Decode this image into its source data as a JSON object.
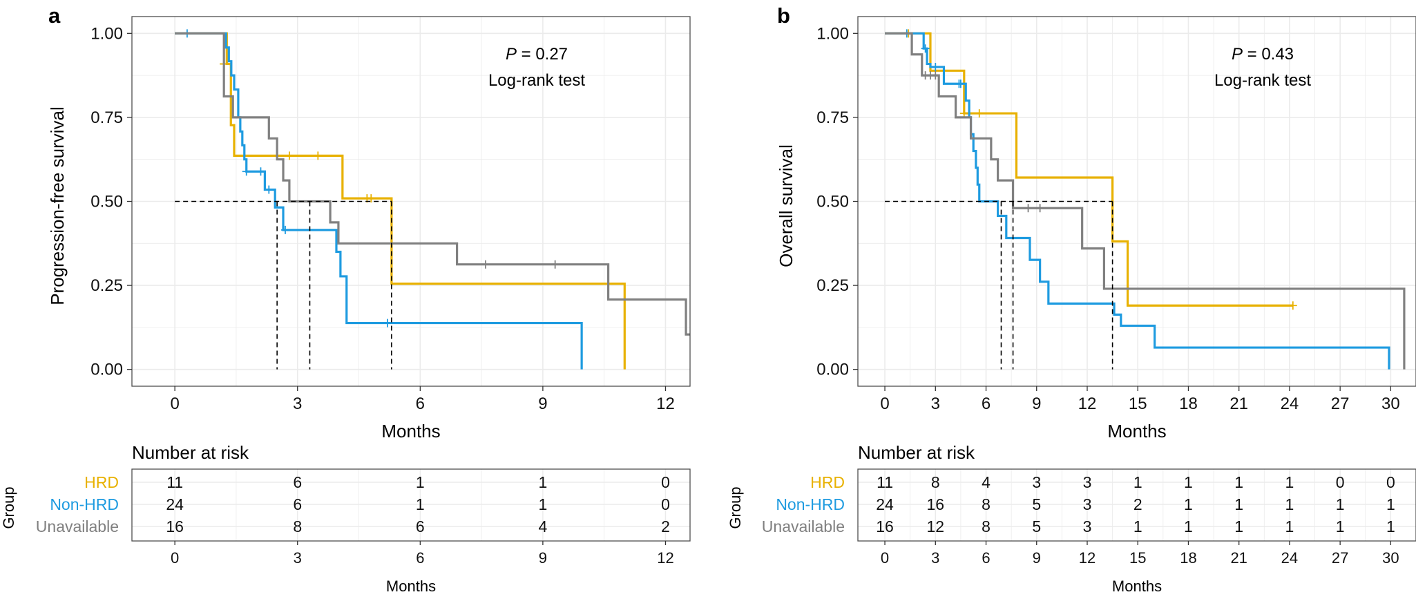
{
  "colors": {
    "hrd": "#E8B100",
    "non_hrd": "#1E9BE0",
    "unavailable": "#808080",
    "median_line": "#000000",
    "grid": "#EBEBEB",
    "panel_border": "#4D4D4D"
  },
  "risk_label": "Number at risk",
  "group_axis_label": "Group",
  "chart_data": [
    {
      "type": "line",
      "subtype": "kaplan-meier",
      "panel_letter": "a",
      "title": "",
      "xlabel": "Months",
      "ylabel": "Progression-free survival",
      "xlim": [
        -1.05,
        12.6
      ],
      "ylim": [
        -0.05,
        1.05
      ],
      "x_ticks": [
        0,
        3,
        6,
        9,
        12
      ],
      "x_tick_labels": [
        "0",
        "3",
        "6",
        "9",
        "12"
      ],
      "y_ticks": [
        0,
        0.25,
        0.5,
        0.75,
        1.0
      ],
      "y_tick_labels": [
        "0.00",
        "0.25",
        "0.50",
        "0.75",
        "1.00"
      ],
      "stat_p_label": "P",
      "stat_p_value": " = 0.27",
      "stat_test": "Log-rank test",
      "legend": [
        "HRD",
        "Non-HRD",
        "Unavailable"
      ],
      "series": [
        {
          "name": "HRD",
          "color_key": "hrd",
          "steps": [
            [
              0,
              1.0
            ],
            [
              1.27,
              0.909
            ],
            [
              1.37,
              0.727
            ],
            [
              1.45,
              0.636
            ],
            [
              4.1,
              0.509
            ],
            [
              5.3,
              0.255
            ],
            [
              11.0,
              0.0
            ]
          ],
          "end": 11.0,
          "censors": [
            [
              1.2,
              0.909
            ],
            [
              2.8,
              0.636
            ],
            [
              3.5,
              0.636
            ],
            [
              4.7,
              0.509
            ],
            [
              4.8,
              0.509
            ]
          ]
        },
        {
          "name": "Non-HRD",
          "color_key": "non_hrd",
          "steps": [
            [
              0,
              1.0
            ],
            [
              1.25,
              0.958
            ],
            [
              1.32,
              0.917
            ],
            [
              1.38,
              0.875
            ],
            [
              1.45,
              0.833
            ],
            [
              1.55,
              0.75
            ],
            [
              1.6,
              0.708
            ],
            [
              1.65,
              0.667
            ],
            [
              1.7,
              0.625
            ],
            [
              1.75,
              0.589
            ],
            [
              2.2,
              0.535
            ],
            [
              2.45,
              0.482
            ],
            [
              2.65,
              0.415
            ],
            [
              3.95,
              0.35
            ],
            [
              4.05,
              0.277
            ],
            [
              4.2,
              0.138
            ],
            [
              9.95,
              0.0
            ]
          ],
          "end": 9.95,
          "censors": [
            [
              0.3,
              1.0
            ],
            [
              1.75,
              0.589
            ],
            [
              2.1,
              0.589
            ],
            [
              2.3,
              0.535
            ],
            [
              2.7,
              0.415
            ],
            [
              5.2,
              0.138
            ]
          ]
        },
        {
          "name": "Unavailable",
          "color_key": "unavailable",
          "steps": [
            [
              0,
              1.0
            ],
            [
              1.2,
              0.8125
            ],
            [
              1.42,
              0.75
            ],
            [
              2.3,
              0.6875
            ],
            [
              2.5,
              0.625
            ],
            [
              2.65,
              0.5625
            ],
            [
              2.8,
              0.5
            ],
            [
              3.8,
              0.4375
            ],
            [
              4.0,
              0.375
            ],
            [
              6.9,
              0.3125
            ],
            [
              10.6,
              0.208
            ],
            [
              12.5,
              0.104
            ]
          ],
          "end": 12.6,
          "censors": [
            [
              7.6,
              0.3125
            ],
            [
              9.3,
              0.3125
            ]
          ]
        }
      ],
      "medians": [
        {
          "x": 2.5,
          "color_key": "median_line"
        },
        {
          "x": 3.3,
          "color_key": "median_line"
        },
        {
          "x": 5.3,
          "color_key": "median_line"
        }
      ],
      "risk_table": {
        "x_ticks": [
          0,
          3,
          6,
          9,
          12
        ],
        "x_tick_labels": [
          "0",
          "3",
          "6",
          "9",
          "12"
        ],
        "xlabel": "Months",
        "rows": [
          {
            "name": "HRD",
            "color_key": "hrd",
            "values": [
              "11",
              "6",
              "1",
              "1",
              "0"
            ]
          },
          {
            "name": "Non-HRD",
            "color_key": "non_hrd",
            "values": [
              "24",
              "6",
              "1",
              "1",
              "0"
            ]
          },
          {
            "name": "Unavailable",
            "color_key": "unavailable",
            "values": [
              "16",
              "8",
              "6",
              "4",
              "2"
            ]
          }
        ]
      }
    },
    {
      "type": "line",
      "subtype": "kaplan-meier",
      "panel_letter": "b",
      "title": "",
      "xlabel": "Months",
      "ylabel": "Overall survival",
      "xlim": [
        -1.6,
        31.5
      ],
      "ylim": [
        -0.05,
        1.05
      ],
      "x_ticks": [
        0,
        3,
        6,
        9,
        12,
        15,
        18,
        21,
        24,
        27,
        30
      ],
      "x_tick_labels": [
        "0",
        "3",
        "6",
        "9",
        "12",
        "15",
        "18",
        "21",
        "24",
        "27",
        "30"
      ],
      "y_ticks": [
        0,
        0.25,
        0.5,
        0.75,
        1.0
      ],
      "y_tick_labels": [
        "0.00",
        "0.25",
        "0.50",
        "0.75",
        "1.00"
      ],
      "stat_p_label": "P",
      "stat_p_value": " = 0.43",
      "stat_test": "Log-rank test",
      "legend": [
        "HRD",
        "Non-HRD",
        "Unavailable"
      ],
      "series": [
        {
          "name": "HRD",
          "color_key": "hrd",
          "steps": [
            [
              0,
              1.0
            ],
            [
              2.7,
              0.889
            ],
            [
              4.7,
              0.762
            ],
            [
              5.5,
              0.762
            ],
            [
              7.8,
              0.571
            ],
            [
              13.5,
              0.381
            ],
            [
              14.4,
              0.19
            ]
          ],
          "end": 24.2,
          "censors": [
            [
              1.4,
              1.0
            ],
            [
              4.7,
              0.762
            ],
            [
              5.6,
              0.762
            ],
            [
              24.2,
              0.19
            ]
          ]
        },
        {
          "name": "Non-HRD",
          "color_key": "non_hrd",
          "steps": [
            [
              0,
              1.0
            ],
            [
              2.3,
              0.955
            ],
            [
              2.5,
              0.909
            ],
            [
              2.7,
              0.9
            ],
            [
              3.5,
              0.85
            ],
            [
              4.8,
              0.8
            ],
            [
              5.0,
              0.75
            ],
            [
              5.1,
              0.7
            ],
            [
              5.25,
              0.65
            ],
            [
              5.4,
              0.6
            ],
            [
              5.5,
              0.55
            ],
            [
              5.6,
              0.5
            ],
            [
              6.7,
              0.457
            ],
            [
              7.2,
              0.391
            ],
            [
              8.6,
              0.326
            ],
            [
              9.2,
              0.261
            ],
            [
              9.7,
              0.196
            ],
            [
              13.6,
              0.163
            ],
            [
              14.0,
              0.13
            ],
            [
              16.0,
              0.065
            ],
            [
              29.9,
              0.0
            ]
          ],
          "end": 29.9,
          "censors": [
            [
              1.3,
              1.0
            ],
            [
              2.4,
              0.955
            ],
            [
              3.0,
              0.9
            ],
            [
              4.4,
              0.85
            ],
            [
              4.5,
              0.85
            ]
          ]
        },
        {
          "name": "Unavailable",
          "color_key": "unavailable",
          "steps": [
            [
              0,
              1.0
            ],
            [
              1.6,
              0.9375
            ],
            [
              2.2,
              0.875
            ],
            [
              3.2,
              0.8125
            ],
            [
              4.2,
              0.75
            ],
            [
              5.1,
              0.6875
            ],
            [
              6.3,
              0.625
            ],
            [
              6.7,
              0.5625
            ],
            [
              7.6,
              0.48
            ],
            [
              11.7,
              0.36
            ],
            [
              13.0,
              0.24
            ],
            [
              30.8,
              0.0
            ]
          ],
          "end": 30.8,
          "censors": [
            [
              2.4,
              0.875
            ],
            [
              2.7,
              0.875
            ],
            [
              3.0,
              0.875
            ],
            [
              8.5,
              0.48
            ],
            [
              9.2,
              0.48
            ]
          ]
        }
      ],
      "medians": [
        {
          "x": 6.9,
          "color_key": "median_line"
        },
        {
          "x": 7.6,
          "color_key": "median_line"
        },
        {
          "x": 13.5,
          "color_key": "median_line"
        }
      ],
      "risk_table": {
        "x_ticks": [
          0,
          3,
          6,
          9,
          12,
          15,
          18,
          21,
          24,
          27,
          30
        ],
        "x_tick_labels": [
          "0",
          "3",
          "6",
          "9",
          "12",
          "15",
          "18",
          "21",
          "24",
          "27",
          "30"
        ],
        "xlabel": "Months",
        "rows": [
          {
            "name": "HRD",
            "color_key": "hrd",
            "values": [
              "11",
              "8",
              "4",
              "3",
              "3",
              "1",
              "1",
              "1",
              "1",
              "0",
              "0"
            ]
          },
          {
            "name": "Non-HRD",
            "color_key": "non_hrd",
            "values": [
              "24",
              "16",
              "8",
              "5",
              "3",
              "2",
              "1",
              "1",
              "1",
              "1",
              "1"
            ]
          },
          {
            "name": "Unavailable",
            "color_key": "unavailable",
            "values": [
              "16",
              "12",
              "8",
              "5",
              "3",
              "1",
              "1",
              "1",
              "1",
              "1",
              "1"
            ]
          }
        ]
      }
    }
  ]
}
